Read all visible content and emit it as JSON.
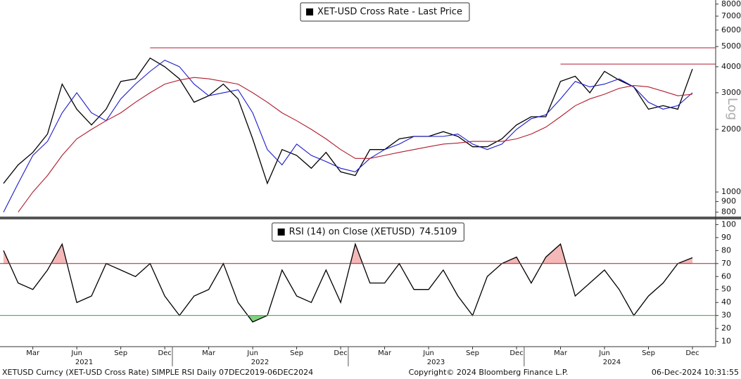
{
  "chart_data": [
    {
      "type": "line",
      "scale": "log",
      "axis_label": "Log",
      "x": [
        "2021-01",
        "2021-02",
        "2021-03",
        "2021-04",
        "2021-05",
        "2021-06",
        "2021-07",
        "2021-08",
        "2021-09",
        "2021-10",
        "2021-11",
        "2021-12",
        "2022-01",
        "2022-02",
        "2022-03",
        "2022-04",
        "2022-05",
        "2022-06",
        "2022-07",
        "2022-08",
        "2022-09",
        "2022-10",
        "2022-11",
        "2022-12",
        "2023-01",
        "2023-02",
        "2023-03",
        "2023-04",
        "2023-05",
        "2023-06",
        "2023-07",
        "2023-08",
        "2023-09",
        "2023-10",
        "2023-11",
        "2023-12",
        "2024-01",
        "2024-02",
        "2024-03",
        "2024-04",
        "2024-05",
        "2024-06",
        "2024-07",
        "2024-08",
        "2024-09",
        "2024-10",
        "2024-11",
        "2024-12"
      ],
      "series": [
        {
          "name": "XET-USD Cross Rate - Last Price",
          "color": "#000000",
          "values": [
            1100,
            1350,
            1550,
            1900,
            3300,
            2500,
            2100,
            2500,
            3400,
            3500,
            4400,
            4000,
            3500,
            2700,
            2900,
            3300,
            2800,
            1800,
            1100,
            1600,
            1500,
            1300,
            1550,
            1250,
            1200,
            1600,
            1600,
            1800,
            1850,
            1850,
            1950,
            1850,
            1650,
            1650,
            1800,
            2100,
            2300,
            2300,
            3400,
            3600,
            3000,
            3800,
            3450,
            3200,
            2500,
            2600,
            2500,
            3900
          ]
        },
        {
          "color": "#1a1acc",
          "values": [
            800,
            1100,
            1500,
            1750,
            2400,
            3000,
            2400,
            2200,
            2800,
            3300,
            3800,
            4300,
            4000,
            3300,
            2900,
            3000,
            3100,
            2400,
            1600,
            1350,
            1700,
            1500,
            1400,
            1300,
            1250,
            1450,
            1600,
            1700,
            1850,
            1850,
            1850,
            1900,
            1700,
            1600,
            1700,
            2000,
            2250,
            2350,
            2800,
            3400,
            3200,
            3300,
            3500,
            3200,
            2700,
            2500,
            2600,
            3000
          ]
        },
        {
          "color": "#b01c2e",
          "values": [
            null,
            800,
            1000,
            1200,
            1500,
            1800,
            2000,
            2200,
            2400,
            2700,
            3000,
            3300,
            3450,
            3550,
            3500,
            3400,
            3300,
            3000,
            2700,
            2400,
            2200,
            2000,
            1800,
            1600,
            1450,
            1450,
            1500,
            1550,
            1600,
            1650,
            1700,
            1720,
            1750,
            1750,
            1750,
            1800,
            1900,
            2050,
            2300,
            2600,
            2800,
            2950,
            3150,
            3250,
            3200,
            3050,
            2900,
            2950
          ]
        }
      ],
      "reference_lines": [
        {
          "value": 4930,
          "start": "2021-11",
          "color": "#b01c2e"
        },
        {
          "value": 4120,
          "start": "2024-03",
          "color": "#b01c2e"
        }
      ],
      "xlim": [
        "2021-01",
        "2024-12"
      ],
      "ylim": [
        762,
        8370
      ],
      "yticks": [
        800,
        900,
        1000,
        2000,
        3000,
        4000,
        5000,
        6000,
        7000,
        8000
      ]
    },
    {
      "type": "line",
      "x": [
        "2021-01",
        "2021-02",
        "2021-03",
        "2021-04",
        "2021-05",
        "2021-06",
        "2021-07",
        "2021-08",
        "2021-09",
        "2021-10",
        "2021-11",
        "2021-12",
        "2022-01",
        "2022-02",
        "2022-03",
        "2022-04",
        "2022-05",
        "2022-06",
        "2022-07",
        "2022-08",
        "2022-09",
        "2022-10",
        "2022-11",
        "2022-12",
        "2023-01",
        "2023-02",
        "2023-03",
        "2023-04",
        "2023-05",
        "2023-06",
        "2023-07",
        "2023-08",
        "2023-09",
        "2023-10",
        "2023-11",
        "2023-12",
        "2024-01",
        "2024-02",
        "2024-03",
        "2024-04",
        "2024-05",
        "2024-06",
        "2024-07",
        "2024-08",
        "2024-09",
        "2024-10",
        "2024-11",
        "2024-12"
      ],
      "series": [
        {
          "name": "RSI (14)  on Close (XETUSD)",
          "color": "#000000",
          "values": [
            80,
            55,
            50,
            65,
            85,
            40,
            45,
            70,
            65,
            60,
            70,
            45,
            30,
            45,
            50,
            70,
            40,
            25,
            30,
            65,
            45,
            40,
            65,
            40,
            85,
            55,
            55,
            70,
            50,
            50,
            65,
            45,
            30,
            60,
            70,
            75,
            55,
            75,
            85,
            45,
            55,
            65,
            50,
            30,
            45,
            55,
            70,
            74.5109
          ]
        }
      ],
      "reference_lines": [
        {
          "value": 70,
          "color": "#b01c2e",
          "fill": "#f4b8b8"
        },
        {
          "value": 30,
          "color": "#33aa33",
          "fill": "#7fd07f"
        }
      ],
      "xlim": [
        "2021-01",
        "2024-12"
      ],
      "ylim": [
        6,
        104
      ],
      "yticks": [
        10,
        20,
        30,
        40,
        50,
        60,
        70,
        80,
        90,
        100
      ],
      "xticks": [
        {
          "value": "2021-03",
          "label": "Mar"
        },
        {
          "value": "2021-06",
          "label": "Jun"
        },
        {
          "value": "2021-09",
          "label": "Sep"
        },
        {
          "value": "2021-12",
          "label": "Dec"
        },
        {
          "value": "2022-03",
          "label": "Mar"
        },
        {
          "value": "2022-06",
          "label": "Jun"
        },
        {
          "value": "2022-09",
          "label": "Sep"
        },
        {
          "value": "2022-12",
          "label": "Dec"
        },
        {
          "value": "2023-03",
          "label": "Mar"
        },
        {
          "value": "2023-06",
          "label": "Jun"
        },
        {
          "value": "2023-09",
          "label": "Sep"
        },
        {
          "value": "2023-12",
          "label": "Dec"
        },
        {
          "value": "2024-03",
          "label": "Mar"
        },
        {
          "value": "2024-06",
          "label": "Jun"
        },
        {
          "value": "2024-09",
          "label": "Sep"
        },
        {
          "value": "2024-12",
          "label": "Dec"
        }
      ],
      "years": [
        "2021",
        "2022",
        "2023",
        "2024"
      ]
    }
  ],
  "footer": {
    "left": "XETUSD Curncy (XET-USD Cross Rate) SIMPLE RSI  Daily 07DEC2019-06DEC2024",
    "center": "Copyright© 2024 Bloomberg Finance L.P.",
    "right": "06-Dec-2024 10:31:55"
  }
}
